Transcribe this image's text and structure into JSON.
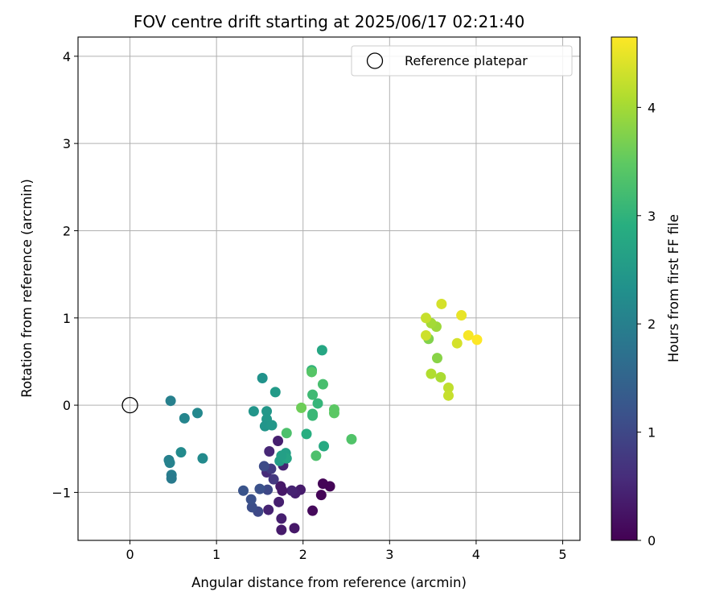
{
  "chart_data": {
    "type": "scatter",
    "title": "FOV centre drift starting at 2025/06/17 02:21:40",
    "xlabel": "Angular distance from reference (arcmin)",
    "ylabel": "Rotation from reference (arcmin)",
    "xlim": [
      -0.6,
      5.2
    ],
    "ylim": [
      -1.55,
      4.22
    ],
    "xticks": [
      0,
      1,
      2,
      3,
      4,
      5
    ],
    "yticks": [
      -1,
      0,
      1,
      2,
      3,
      4
    ],
    "grid": true,
    "legend": {
      "placement": "top-right",
      "label": "Reference platepar"
    },
    "reference_point": {
      "x": 0,
      "y": 0
    },
    "colorbar": {
      "label": "Hours from first FF file",
      "range": [
        0,
        4.65
      ],
      "ticks": [
        0,
        1,
        2,
        3,
        4
      ],
      "colormap": "viridis"
    },
    "points": [
      {
        "x": 2.31,
        "y": -0.93,
        "h": 0.05
      },
      {
        "x": 2.23,
        "y": -0.9,
        "h": 0.05
      },
      {
        "x": 2.21,
        "y": -1.03,
        "h": 0.05
      },
      {
        "x": 2.11,
        "y": -1.21,
        "h": 0.1
      },
      {
        "x": 1.97,
        "y": -0.97,
        "h": 0.35
      },
      {
        "x": 1.91,
        "y": -1.01,
        "h": 0.4
      },
      {
        "x": 1.87,
        "y": -0.98,
        "h": 0.45
      },
      {
        "x": 1.9,
        "y": -1.41,
        "h": 0.3
      },
      {
        "x": 1.75,
        "y": -1.43,
        "h": 0.35
      },
      {
        "x": 1.75,
        "y": -1.3,
        "h": 0.4
      },
      {
        "x": 1.74,
        "y": -0.93,
        "h": 0.3
      },
      {
        "x": 1.76,
        "y": -0.98,
        "h": 0.3
      },
      {
        "x": 1.72,
        "y": -1.11,
        "h": 0.4
      },
      {
        "x": 1.77,
        "y": -0.69,
        "h": 0.45
      },
      {
        "x": 1.71,
        "y": -0.41,
        "h": 0.4
      },
      {
        "x": 1.6,
        "y": -1.2,
        "h": 0.45
      },
      {
        "x": 1.58,
        "y": -0.77,
        "h": 0.55
      },
      {
        "x": 1.61,
        "y": -0.53,
        "h": 0.5
      },
      {
        "x": 1.66,
        "y": -0.85,
        "h": 0.75
      },
      {
        "x": 1.63,
        "y": -0.73,
        "h": 0.8
      },
      {
        "x": 1.55,
        "y": -0.7,
        "h": 1.05
      },
      {
        "x": 1.59,
        "y": -0.97,
        "h": 1.0
      },
      {
        "x": 1.5,
        "y": -0.96,
        "h": 1.15
      },
      {
        "x": 1.48,
        "y": -1.22,
        "h": 1.0
      },
      {
        "x": 1.41,
        "y": -1.17,
        "h": 1.1
      },
      {
        "x": 1.4,
        "y": -1.08,
        "h": 1.15
      },
      {
        "x": 1.31,
        "y": -0.98,
        "h": 1.2
      },
      {
        "x": 0.47,
        "y": 0.05,
        "h": 2.0
      },
      {
        "x": 0.63,
        "y": -0.15,
        "h": 2.1
      },
      {
        "x": 0.78,
        "y": -0.09,
        "h": 2.15
      },
      {
        "x": 0.59,
        "y": -0.54,
        "h": 2.2
      },
      {
        "x": 0.84,
        "y": -0.61,
        "h": 2.2
      },
      {
        "x": 0.45,
        "y": -0.63,
        "h": 2.0
      },
      {
        "x": 0.46,
        "y": -0.66,
        "h": 2.05
      },
      {
        "x": 0.48,
        "y": -0.8,
        "h": 1.95
      },
      {
        "x": 0.48,
        "y": -0.84,
        "h": 1.9
      },
      {
        "x": 1.53,
        "y": 0.31,
        "h": 2.35
      },
      {
        "x": 1.43,
        "y": -0.07,
        "h": 2.4
      },
      {
        "x": 1.58,
        "y": -0.07,
        "h": 2.45
      },
      {
        "x": 1.58,
        "y": -0.16,
        "h": 2.45
      },
      {
        "x": 1.56,
        "y": -0.24,
        "h": 2.4
      },
      {
        "x": 1.64,
        "y": -0.23,
        "h": 2.45
      },
      {
        "x": 1.68,
        "y": 0.15,
        "h": 2.5
      },
      {
        "x": 1.73,
        "y": -0.64,
        "h": 2.55
      },
      {
        "x": 1.8,
        "y": -0.55,
        "h": 2.6
      },
      {
        "x": 1.79,
        "y": -0.6,
        "h": 2.65
      },
      {
        "x": 1.81,
        "y": -0.61,
        "h": 2.7
      },
      {
        "x": 1.75,
        "y": -0.58,
        "h": 2.6
      },
      {
        "x": 2.22,
        "y": 0.63,
        "h": 2.75
      },
      {
        "x": 2.24,
        "y": -0.47,
        "h": 2.8
      },
      {
        "x": 2.04,
        "y": -0.33,
        "h": 2.9
      },
      {
        "x": 2.1,
        "y": 0.4,
        "h": 3.0
      },
      {
        "x": 2.17,
        "y": 0.02,
        "h": 3.05
      },
      {
        "x": 2.11,
        "y": -0.1,
        "h": 3.1
      },
      {
        "x": 2.11,
        "y": -0.12,
        "h": 3.1
      },
      {
        "x": 2.11,
        "y": 0.12,
        "h": 3.15
      },
      {
        "x": 2.23,
        "y": 0.24,
        "h": 3.25
      },
      {
        "x": 1.81,
        "y": -0.32,
        "h": 3.3
      },
      {
        "x": 2.15,
        "y": -0.58,
        "h": 3.3
      },
      {
        "x": 2.56,
        "y": -0.39,
        "h": 3.35
      },
      {
        "x": 2.1,
        "y": 0.38,
        "h": 3.4
      },
      {
        "x": 2.36,
        "y": -0.05,
        "h": 3.45
      },
      {
        "x": 2.36,
        "y": -0.09,
        "h": 3.45
      },
      {
        "x": 1.98,
        "y": -0.03,
        "h": 3.6
      },
      {
        "x": 3.55,
        "y": 0.54,
        "h": 3.8
      },
      {
        "x": 3.45,
        "y": 0.76,
        "h": 3.75
      },
      {
        "x": 3.54,
        "y": 0.9,
        "h": 3.95
      },
      {
        "x": 3.48,
        "y": 0.94,
        "h": 4.0
      },
      {
        "x": 3.59,
        "y": 0.32,
        "h": 4.05
      },
      {
        "x": 3.48,
        "y": 0.36,
        "h": 4.1
      },
      {
        "x": 3.68,
        "y": 0.2,
        "h": 4.2
      },
      {
        "x": 3.68,
        "y": 0.11,
        "h": 4.25
      },
      {
        "x": 3.42,
        "y": 1.0,
        "h": 4.25
      },
      {
        "x": 3.42,
        "y": 0.8,
        "h": 4.3
      },
      {
        "x": 3.6,
        "y": 1.16,
        "h": 4.35
      },
      {
        "x": 3.78,
        "y": 0.71,
        "h": 4.35
      },
      {
        "x": 3.83,
        "y": 1.03,
        "h": 4.5
      },
      {
        "x": 3.91,
        "y": 0.8,
        "h": 4.6
      },
      {
        "x": 4.01,
        "y": 0.75,
        "h": 4.65
      }
    ]
  }
}
